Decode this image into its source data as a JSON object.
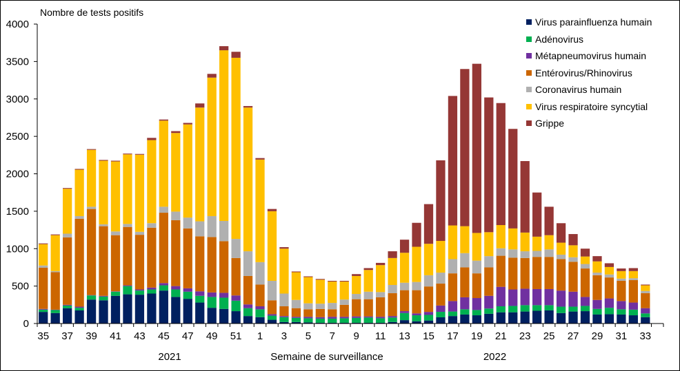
{
  "chart_data": {
    "type": "bar",
    "stacked": true,
    "title": "",
    "ylabel": "Nombre de tests positifs",
    "xlabel": "Semaine de surveillance",
    "year_labels": [
      {
        "label": "2021",
        "under_week_index": 10
      },
      {
        "label": "2022",
        "under_week_index": 37
      }
    ],
    "ylim": [
      0,
      4000
    ],
    "yticks": [
      0,
      500,
      1000,
      1500,
      2000,
      2500,
      3000,
      3500,
      4000
    ],
    "grid": false,
    "legend_position": "top-right",
    "categories": [
      "35",
      "36",
      "37",
      "38",
      "39",
      "40",
      "41",
      "42",
      "43",
      "44",
      "45",
      "46",
      "47",
      "48",
      "49",
      "50",
      "51",
      "52",
      "1",
      "2",
      "3",
      "4",
      "5",
      "6",
      "7",
      "8",
      "9",
      "10",
      "11",
      "12",
      "13",
      "14",
      "15",
      "16",
      "17",
      "18",
      "19",
      "20",
      "21",
      "22",
      "23",
      "24",
      "25",
      "26",
      "27",
      "28",
      "29",
      "30",
      "31",
      "32",
      "33"
    ],
    "xtick_labels_shown": [
      "35",
      "37",
      "39",
      "41",
      "43",
      "45",
      "47",
      "49",
      "51",
      "1",
      "3",
      "5",
      "7",
      "9",
      "11",
      "13",
      "15",
      "17",
      "19",
      "21",
      "23",
      "25",
      "27",
      "29",
      "31",
      "33"
    ],
    "series": [
      {
        "name": "Virus parainfluenza humain",
        "color": "#002060",
        "values": [
          155,
          140,
          205,
          175,
          320,
          310,
          370,
          390,
          385,
          400,
          440,
          355,
          330,
          280,
          210,
          195,
          165,
          100,
          85,
          50,
          20,
          20,
          15,
          10,
          10,
          10,
          10,
          10,
          10,
          20,
          45,
          30,
          40,
          83,
          100,
          120,
          110,
          130,
          150,
          150,
          160,
          170,
          175,
          140,
          160,
          165,
          120,
          125,
          120,
          110,
          85
        ]
      },
      {
        "name": "Adénovirus",
        "color": "#00B050",
        "values": [
          30,
          40,
          35,
          35,
          55,
          50,
          55,
          110,
          55,
          55,
          70,
          100,
          95,
          90,
          145,
          150,
          140,
          105,
          105,
          55,
          65,
          55,
          55,
          55,
          55,
          60,
          65,
          70,
          60,
          60,
          95,
          80,
          75,
          73,
          60,
          70,
          70,
          70,
          80,
          85,
          85,
          75,
          70,
          85,
          65,
          70,
          75,
          85,
          70,
          75,
          50
        ]
      },
      {
        "name": "Métapneumovirus humain",
        "color": "#7030A0",
        "values": [
          10,
          5,
          10,
          15,
          5,
          10,
          5,
          10,
          15,
          25,
          30,
          45,
          45,
          60,
          60,
          65,
          70,
          50,
          40,
          20,
          15,
          15,
          20,
          20,
          25,
          20,
          20,
          15,
          20,
          20,
          25,
          25,
          40,
          84,
          140,
          160,
          160,
          170,
          260,
          220,
          220,
          215,
          215,
          215,
          200,
          120,
          120,
          125,
          110,
          95,
          70
        ]
      },
      {
        "name": "Entérovirus/Rhinovirus",
        "color": "#CC6600",
        "values": [
          550,
          500,
          900,
          1175,
          1150,
          930,
          750,
          780,
          730,
          800,
          940,
          880,
          800,
          735,
          740,
          690,
          500,
          380,
          290,
          185,
          130,
          115,
          100,
          110,
          100,
          160,
          230,
          230,
          260,
          305,
          280,
          310,
          340,
          293,
          370,
          400,
          330,
          380,
          415,
          425,
          410,
          430,
          430,
          420,
          400,
          380,
          330,
          280,
          270,
          300,
          200
        ]
      },
      {
        "name": "Coronavirus humain",
        "color": "#B0B0B0",
        "values": [
          30,
          15,
          50,
          35,
          30,
          25,
          50,
          40,
          40,
          60,
          80,
          115,
          145,
          200,
          280,
          270,
          255,
          330,
          300,
          260,
          170,
          110,
          80,
          70,
          85,
          70,
          70,
          100,
          70,
          110,
          100,
          110,
          150,
          147,
          190,
          190,
          170,
          150,
          100,
          110,
          90,
          80,
          100,
          60,
          60,
          60,
          35,
          40,
          30,
          25,
          30
        ]
      },
      {
        "name": "Virus respiratoire syncytial",
        "color": "#FFC000",
        "values": [
          285,
          480,
          600,
          620,
          760,
          850,
          935,
          930,
          1030,
          1110,
          1150,
          1050,
          1245,
          1520,
          1850,
          2280,
          2420,
          1920,
          1370,
          930,
          600,
          370,
          350,
          320,
          285,
          240,
          240,
          290,
          360,
          360,
          400,
          470,
          420,
          423,
          450,
          360,
          370,
          320,
          310,
          280,
          250,
          190,
          190,
          160,
          160,
          100,
          150,
          100,
          100,
          95,
          75
        ]
      },
      {
        "name": "Grippe",
        "color": "#953735",
        "values": [
          10,
          10,
          10,
          10,
          10,
          10,
          10,
          10,
          10,
          30,
          15,
          25,
          20,
          55,
          50,
          55,
          80,
          20,
          20,
          30,
          20,
          10,
          10,
          10,
          10,
          10,
          25,
          25,
          30,
          90,
          175,
          320,
          530,
          1077,
          1730,
          2100,
          2260,
          1800,
          1630,
          1330,
          955,
          590,
          380,
          260,
          150,
          105,
          70,
          50,
          35,
          40,
          10
        ]
      }
    ]
  }
}
